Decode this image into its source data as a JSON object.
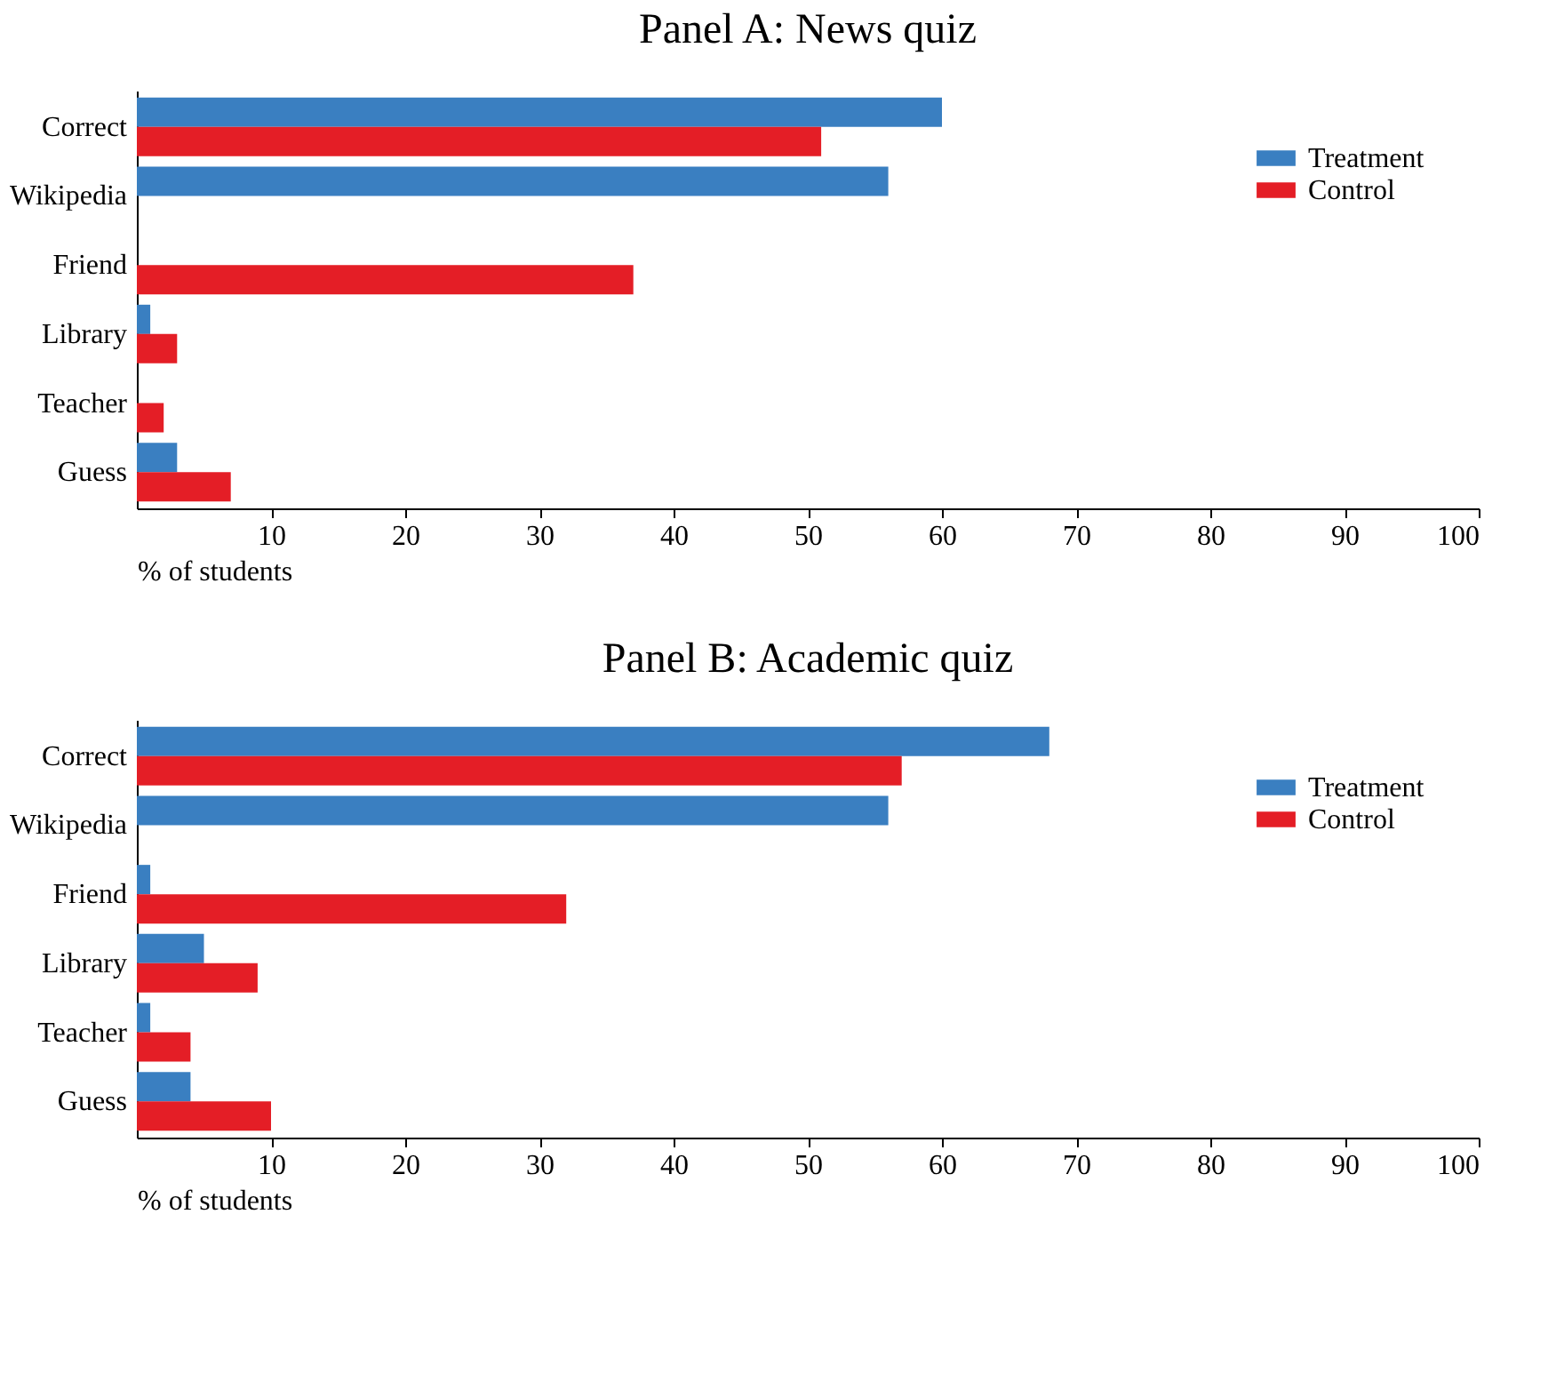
{
  "chart_data": [
    {
      "type": "bar",
      "orientation": "horizontal",
      "title": "Panel A: News quiz",
      "xlabel": "% of students",
      "categories": [
        "Correct",
        "Wikipedia",
        "Friend",
        "Library",
        "Teacher",
        "Guess"
      ],
      "series": [
        {
          "name": "Treatment",
          "color": "#3a7fc1",
          "values": [
            60,
            56,
            0,
            1,
            0,
            3
          ]
        },
        {
          "name": "Control",
          "color": "#e41e26",
          "values": [
            51,
            0,
            37,
            3,
            2,
            7
          ]
        }
      ],
      "xlim": [
        0,
        100
      ],
      "xticks": [
        10,
        20,
        30,
        40,
        50,
        60,
        70,
        80,
        90,
        100
      ],
      "legend": "top right",
      "grid": false
    },
    {
      "type": "bar",
      "orientation": "horizontal",
      "title": "Panel B: Academic quiz",
      "xlabel": "% of students",
      "categories": [
        "Correct",
        "Wikipedia",
        "Friend",
        "Library",
        "Teacher",
        "Guess"
      ],
      "series": [
        {
          "name": "Treatment",
          "color": "#3a7fc1",
          "values": [
            68,
            56,
            1,
            5,
            1,
            4
          ]
        },
        {
          "name": "Control",
          "color": "#e41e26",
          "values": [
            57,
            0,
            32,
            9,
            4,
            10
          ]
        }
      ],
      "xlim": [
        0,
        100
      ],
      "xticks": [
        10,
        20,
        30,
        40,
        50,
        60,
        70,
        80,
        90,
        100
      ],
      "legend": "top right",
      "grid": false
    }
  ]
}
